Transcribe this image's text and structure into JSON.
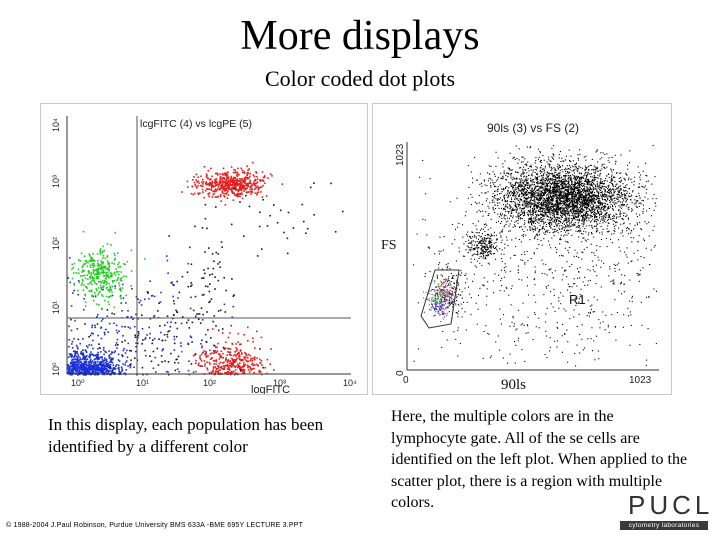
{
  "slide": {
    "title": "More displays",
    "subtitle": "Color coded dot plots"
  },
  "left_plot": {
    "title": "lcgFITC (4) vs lcgPE (5)",
    "x_label": "logFITC",
    "y_ticks": [
      "10⁰",
      "10¹",
      "10²",
      "10³",
      "10⁴"
    ],
    "x_ticks": [
      "10⁰",
      "10¹",
      "10²",
      "10³",
      "10⁴"
    ],
    "populations": [
      {
        "color": "#1a2fd6",
        "cx": 0.3,
        "cy": 0.1,
        "sx": 0.22,
        "sy": 0.17,
        "n": 650
      },
      {
        "color": "#1a2fd6",
        "cx": 0.9,
        "cy": 0.7,
        "sx": 0.6,
        "sy": 0.5,
        "n": 180
      },
      {
        "color": "#22c922",
        "cx": 0.45,
        "cy": 1.55,
        "sx": 0.18,
        "sy": 0.2,
        "n": 320
      },
      {
        "color": "#e51c1c",
        "cx": 2.3,
        "cy": 2.95,
        "sx": 0.23,
        "sy": 0.1,
        "n": 520
      },
      {
        "color": "#e51c1c",
        "cx": 2.3,
        "cy": 0.2,
        "sx": 0.23,
        "sy": 0.18,
        "n": 330
      },
      {
        "color": "#1a1a1a",
        "cx": 1.3,
        "cy": 0.55,
        "sx": 0.5,
        "sy": 0.35,
        "n": 110
      },
      {
        "color": "#1a1a1a",
        "cx": 1.95,
        "cy": 1.45,
        "sx": 0.25,
        "sy": 0.4,
        "n": 60
      },
      {
        "color": "#1a1a1a",
        "cx": 3.1,
        "cy": 2.45,
        "sx": 0.6,
        "sy": 0.3,
        "n": 40
      }
    ]
  },
  "right_plot": {
    "title": "90ls (3) vs FS (2)",
    "x_label": "90ls",
    "y_label": "FS",
    "y_ticks": [
      "0",
      "1023"
    ],
    "x_ticks": [
      "0",
      "1023"
    ],
    "region_label": "R1",
    "populations": [
      {
        "color": "#000000",
        "cx": 0.62,
        "cy": 0.76,
        "sx": 0.13,
        "sy": 0.07,
        "n": 3600
      },
      {
        "color": "#000000",
        "cx": 0.6,
        "cy": 0.5,
        "sx": 0.26,
        "sy": 0.25,
        "n": 900
      },
      {
        "color": "#000000",
        "cx": 0.3,
        "cy": 0.55,
        "sx": 0.03,
        "sy": 0.03,
        "n": 220
      },
      {
        "color": "#000000",
        "cx": 0.17,
        "cy": 0.35,
        "sx": 0.04,
        "sy": 0.06,
        "n": 150
      },
      {
        "color": "#8a3fd0",
        "cx": 0.13,
        "cy": 0.31,
        "sx": 0.025,
        "sy": 0.04,
        "n": 110
      },
      {
        "color": "#e51c1c",
        "cx": 0.14,
        "cy": 0.33,
        "sx": 0.02,
        "sy": 0.03,
        "n": 60
      },
      {
        "color": "#1a2fd6",
        "cx": 0.12,
        "cy": 0.29,
        "sx": 0.02,
        "sy": 0.03,
        "n": 60
      },
      {
        "color": "#22c922",
        "cx": 0.13,
        "cy": 0.33,
        "sx": 0.02,
        "sy": 0.03,
        "n": 50
      }
    ]
  },
  "captions": {
    "left": "In this display, each population has been identified by a different color",
    "right": "Here, the multiple colors are in the lymphocyte gate. All of the se cells are identified on the left plot. When applied to the scatter plot, there is a region with multiple colors."
  },
  "footer": "© 1988-2004 J.Paul Robinson, Purdue University BMS 633A -BME 695Y LECTURE 3.PPT",
  "logo": {
    "name": "PUCL",
    "tagline": "cytometry laboratories"
  },
  "colors": {
    "blue": "#1a2fd6",
    "green": "#22c922",
    "red": "#e51c1c",
    "black": "#000000"
  }
}
